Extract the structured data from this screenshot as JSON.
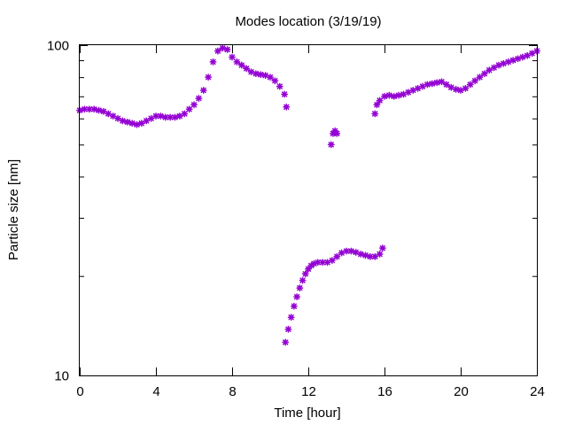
{
  "chart_data": {
    "type": "scatter",
    "title": "Modes location (3/19/19)",
    "xlabel": "Time [hour]",
    "ylabel": "Particle size [nm]",
    "xlim": [
      0,
      24
    ],
    "ylim": [
      10,
      100
    ],
    "yscale": "log",
    "x_ticks": [
      0,
      4,
      8,
      12,
      16,
      20,
      24
    ],
    "x_tick_labels": [
      "0",
      "4",
      "8",
      "12",
      "16",
      "20",
      "24"
    ],
    "y_tick_labels": [
      "10",
      "100"
    ],
    "grid": false,
    "legend": "none",
    "marker_color": "#9400d3",
    "series": [
      {
        "x": [
          0.0,
          0.25,
          0.5,
          0.75,
          1.0,
          1.25,
          1.5,
          1.75,
          2.0,
          2.25,
          2.5,
          2.75,
          3.0,
          3.25,
          3.5,
          3.75,
          4.0,
          4.25,
          4.5,
          4.75,
          5.0,
          5.25,
          5.5,
          5.75,
          6.0,
          6.25,
          6.5,
          6.75,
          7.0,
          7.25,
          7.5,
          7.75,
          8.0,
          8.25,
          8.5,
          8.75,
          9.0,
          9.25,
          9.5,
          9.75,
          10.0,
          10.25,
          10.5,
          10.75,
          10.85,
          13.2,
          13.3,
          13.4,
          13.5,
          15.5,
          15.6,
          15.75,
          16.0,
          16.25,
          16.5,
          16.75,
          17.0,
          17.25,
          17.5,
          17.75,
          18.0,
          18.25,
          18.5,
          18.75,
          19.0,
          19.25,
          19.5,
          19.75,
          20.0,
          20.25,
          20.5,
          20.75,
          21.0,
          21.25,
          21.5,
          21.75,
          22.0,
          22.25,
          22.5,
          22.75,
          23.0,
          23.25,
          23.5,
          23.75,
          24.0
        ],
        "y": [
          63.5,
          64,
          64,
          64,
          63.5,
          63,
          62,
          61,
          60,
          59,
          58.5,
          58,
          57.5,
          58,
          59,
          60,
          61,
          61,
          60.5,
          60.5,
          60.5,
          61,
          62,
          64,
          66,
          69,
          73,
          80,
          89,
          96,
          98,
          97,
          92,
          89,
          87,
          85,
          83,
          82,
          81.5,
          81,
          80,
          78,
          75,
          71,
          65,
          50,
          54,
          55,
          54,
          62,
          66,
          68,
          70,
          70.5,
          70,
          70.5,
          71,
          72,
          73,
          74,
          75,
          76,
          76.5,
          77,
          77.5,
          76,
          74.5,
          73.5,
          73,
          74,
          76,
          78,
          80,
          82,
          84,
          85.5,
          87,
          88,
          89,
          90,
          91,
          92,
          93,
          94.5,
          96
        ]
      },
      {
        "x": [
          10.8,
          10.95,
          11.1,
          11.25,
          11.4,
          11.55,
          11.7,
          11.85,
          12.0,
          12.15,
          12.3,
          12.5,
          12.75,
          13.0,
          13.25,
          13.5,
          13.75,
          14.0,
          14.25,
          14.5,
          14.75,
          15.0,
          15.25,
          15.5,
          15.75,
          15.9
        ],
        "y": [
          12.6,
          13.8,
          15.0,
          16.2,
          17.3,
          18.4,
          19.4,
          20.3,
          21.0,
          21.5,
          21.8,
          22.0,
          22.0,
          22.0,
          22.3,
          22.9,
          23.5,
          23.8,
          23.8,
          23.6,
          23.3,
          23.1,
          22.9,
          22.9,
          23.3,
          24.3
        ]
      }
    ]
  }
}
